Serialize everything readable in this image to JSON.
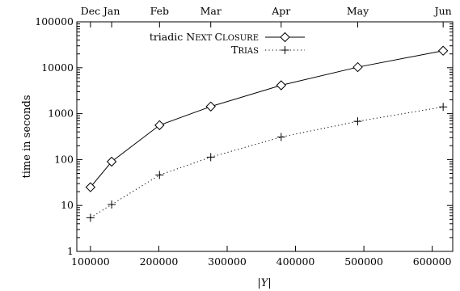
{
  "chart_data": {
    "type": "line",
    "xlabel": "|Y|",
    "ylabel": "time in seconds",
    "xlim": [
      80000,
      630000
    ],
    "ylim": [
      1,
      100000
    ],
    "yscale": "log",
    "grid": false,
    "legend_position": "top-left",
    "x_ticks": [
      "100000",
      "200000",
      "300000",
      "400000",
      "500000",
      "600000"
    ],
    "y_ticks": [
      "1",
      "10",
      "100",
      "1000",
      "10000",
      "100000"
    ],
    "top_axis_ticks": [
      {
        "label": "Dec",
        "x": 100000
      },
      {
        "label": "Jan",
        "x": 131000
      },
      {
        "label": "Feb",
        "x": 201000
      },
      {
        "label": "Mar",
        "x": 276000
      },
      {
        "label": "Apr",
        "x": 379000
      },
      {
        "label": "May",
        "x": 491000
      },
      {
        "label": "Jun",
        "x": 616000
      }
    ],
    "series": [
      {
        "name": "triadic NEXT CLOSURE",
        "name_parts": [
          "triadic ",
          "N",
          "EXT ",
          "C",
          "LOSURE"
        ],
        "marker": "diamond",
        "line": "solid",
        "color": "#000000",
        "points": [
          {
            "x": 100000,
            "y": 25
          },
          {
            "x": 131000,
            "y": 90
          },
          {
            "x": 201000,
            "y": 560
          },
          {
            "x": 276000,
            "y": 1430
          },
          {
            "x": 379000,
            "y": 4150
          },
          {
            "x": 491000,
            "y": 10300
          },
          {
            "x": 616000,
            "y": 23500
          }
        ]
      },
      {
        "name": "TRIAS",
        "name_parts": [
          "T",
          "RIAS"
        ],
        "marker": "plus",
        "line": "dotted",
        "color": "#000000",
        "points": [
          {
            "x": 100000,
            "y": 5.4
          },
          {
            "x": 131000,
            "y": 10.5
          },
          {
            "x": 201000,
            "y": 46
          },
          {
            "x": 276000,
            "y": 113
          },
          {
            "x": 379000,
            "y": 310
          },
          {
            "x": 491000,
            "y": 680
          },
          {
            "x": 616000,
            "y": 1400
          }
        ]
      }
    ]
  }
}
